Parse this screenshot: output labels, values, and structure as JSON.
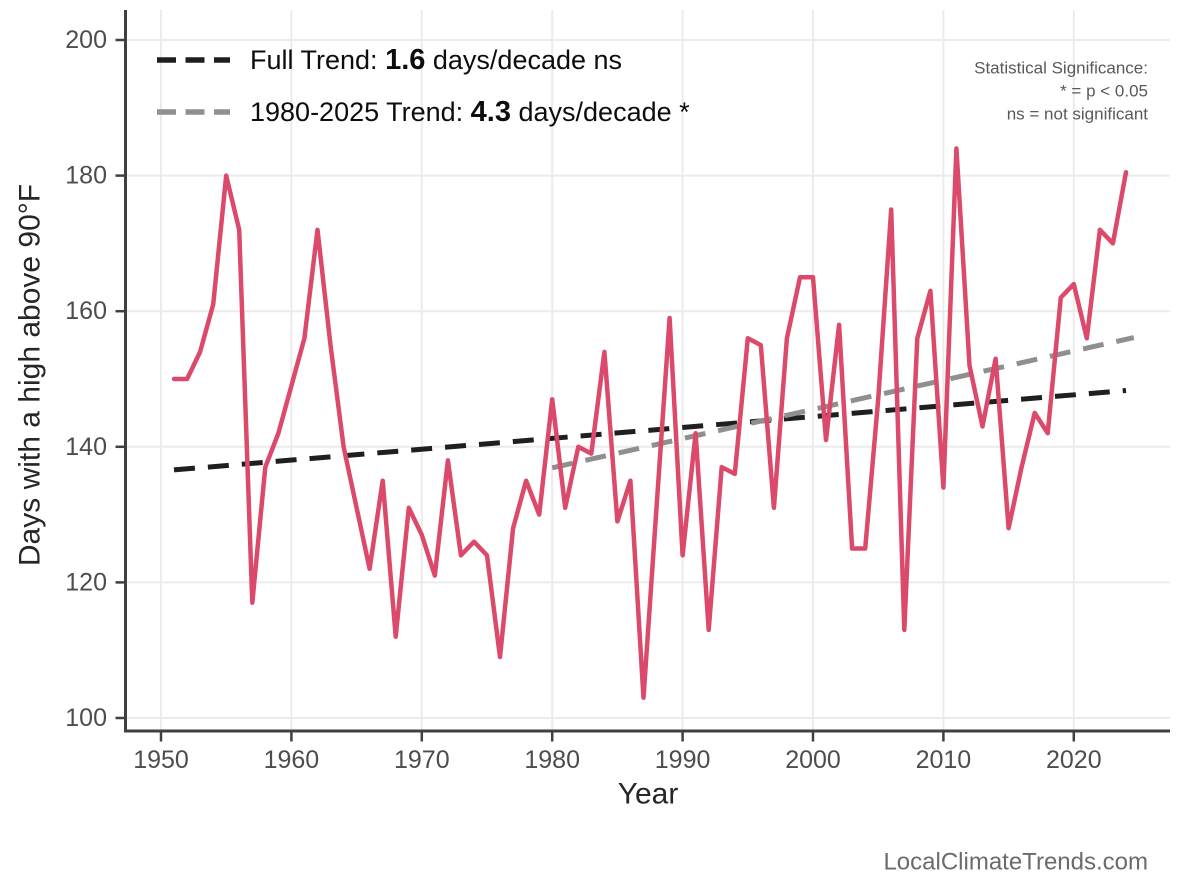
{
  "chart_data": {
    "type": "line",
    "title": "",
    "xlabel": "Year",
    "ylabel": "Days with a high above 90°F",
    "x_ticks": [
      1950,
      1960,
      1970,
      1980,
      1990,
      2000,
      2010,
      2020
    ],
    "y_ticks": [
      100,
      120,
      140,
      160,
      180,
      200
    ],
    "xlim": [
      1947.4,
      2027.4
    ],
    "ylim": [
      98,
      204.5
    ],
    "grid": true,
    "legend_position": "top-left inside",
    "series": [
      {
        "name": "annual-days-above-90F",
        "start_year": 1951,
        "end_year": 2024,
        "values": [
          150,
          150,
          154,
          161,
          180,
          172,
          117,
          137,
          142,
          149,
          156,
          172,
          155,
          140,
          131,
          122,
          135,
          112,
          131,
          127,
          121,
          138,
          124,
          126,
          124,
          109,
          128,
          135,
          130,
          147,
          131,
          140,
          139,
          154,
          129,
          135,
          103,
          131,
          159,
          124,
          142,
          113,
          137,
          136,
          156,
          155,
          131,
          156,
          165,
          165,
          141,
          158,
          125,
          125,
          147,
          175,
          113,
          156,
          163,
          134,
          184,
          152,
          143,
          153,
          128,
          137,
          145,
          142,
          162,
          164,
          156,
          172,
          170,
          180.5
        ]
      }
    ],
    "trends": [
      {
        "name": "full-trend",
        "slope_days_per_decade": 1.6,
        "significance": "ns",
        "x1": 1951,
        "v1": 136.6,
        "x2": 2024,
        "v2": 148.3
      },
      {
        "name": "1980-2025-trend",
        "slope_days_per_decade": 4.3,
        "significance": "*",
        "x1": 1980,
        "v1": 136.9,
        "x2": 2024.6,
        "v2": 156.1
      }
    ]
  },
  "legend": {
    "full": {
      "prefix": "Full Trend: ",
      "value": "1.6",
      "suffix": " days/decade ns"
    },
    "recent": {
      "prefix": "1980-2025 Trend: ",
      "value": "4.3",
      "suffix": " days/decade *"
    }
  },
  "note": {
    "line1": "Statistical Significance:",
    "line2": "* = p < 0.05",
    "line3": "ns = not significant"
  },
  "watermark": "LocalClimateTrends.com",
  "colors": {
    "series": "#DC4A6B",
    "trend_full": "#1f1f1f",
    "trend_recent": "#8f8f8f",
    "grid": "#ebebeb",
    "axis": "#404040",
    "tick_label": "#4d4d4d",
    "axis_title": "#262626",
    "note_text": "#595959",
    "watermark": "#6b6b6b",
    "background": "#ffffff"
  }
}
